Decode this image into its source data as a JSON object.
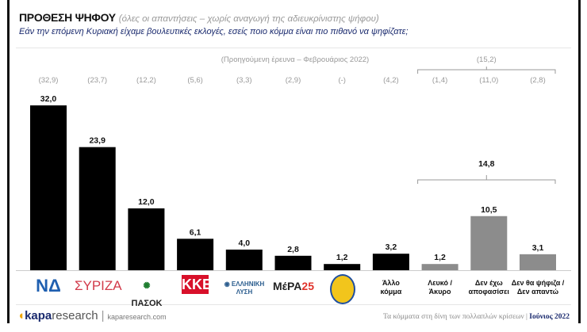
{
  "header": {
    "title": "ΠΡΟΘΕΣΗ ΨΗΦΟΥ",
    "subtitle": "(όλες οι απαντήσεις – χωρίς αναγωγή της αδιευκρίνιστης ψήφου)",
    "question": "Εάν την επόμενη Κυριακή είχαμε βουλευτικές εκλογές, εσείς ποιο κόμμα είναι πιο πιθανό να ψηφίζατε;"
  },
  "chart_data": {
    "type": "bar",
    "categories": [
      "ΝΔ",
      "ΣΥΡΙΖΑ",
      "ΠΑΣΟΚ",
      "ΚΚΕ",
      "ΕΛΛΗΝΙΚΗ ΛΥΣΗ",
      "ΜέΡΑ25",
      "ΕΛΛΗΝΕΣ",
      "Άλλο κόμμα",
      "Λευκό / Άκυρο",
      "Δεν έχω αποφασίσει",
      "Δεν θα ψήφιζα / Δεν απαντώ"
    ],
    "values": [
      32.0,
      23.9,
      12.0,
      6.1,
      4.0,
      2.8,
      1.2,
      3.2,
      1.2,
      10.5,
      3.1
    ],
    "value_labels": [
      "32,0",
      "23,9",
      "12,0",
      "6,1",
      "4,0",
      "2,8",
      "1,2",
      "3,2",
      "1,2",
      "10,5",
      "3,1"
    ],
    "previous_label": "(Προηγούμενη έρευνα – Φεβρουάριος 2022)",
    "previous_values": [
      "(32,9)",
      "(23,7)",
      "(12,2)",
      "(5,6)",
      "(3,3)",
      "(2,9)",
      "(-)",
      "(4,2)",
      "(1,4)",
      "(11,0)",
      "(2,8)"
    ],
    "group_total": "14,8",
    "previous_group_total": "(15,2)",
    "colors": {
      "party": "#000000",
      "other": "#8c8c8c"
    },
    "ylim": [
      0,
      33
    ]
  },
  "logos": {
    "nd": "ΝΔ",
    "syriza": "ΣΥΡΙΖΑ",
    "pasok": "ΠΑΣΟΚ",
    "kke": "ΚΚΕ",
    "el": "ΕΛΛΗΝΙΚΗ ΛΥΣΗ",
    "mera": "ΜέΡΑ25",
    "ellines": "ΕΛΛΗΝΕΣ"
  },
  "footer": {
    "brand_bold": "kapa",
    "brand_rest": "research",
    "url": "kaparesearch.com",
    "caption": "Τα κόμματα στη δίνη των πολλαπλών κρίσεων",
    "date": "Ιούνιος 2022"
  }
}
